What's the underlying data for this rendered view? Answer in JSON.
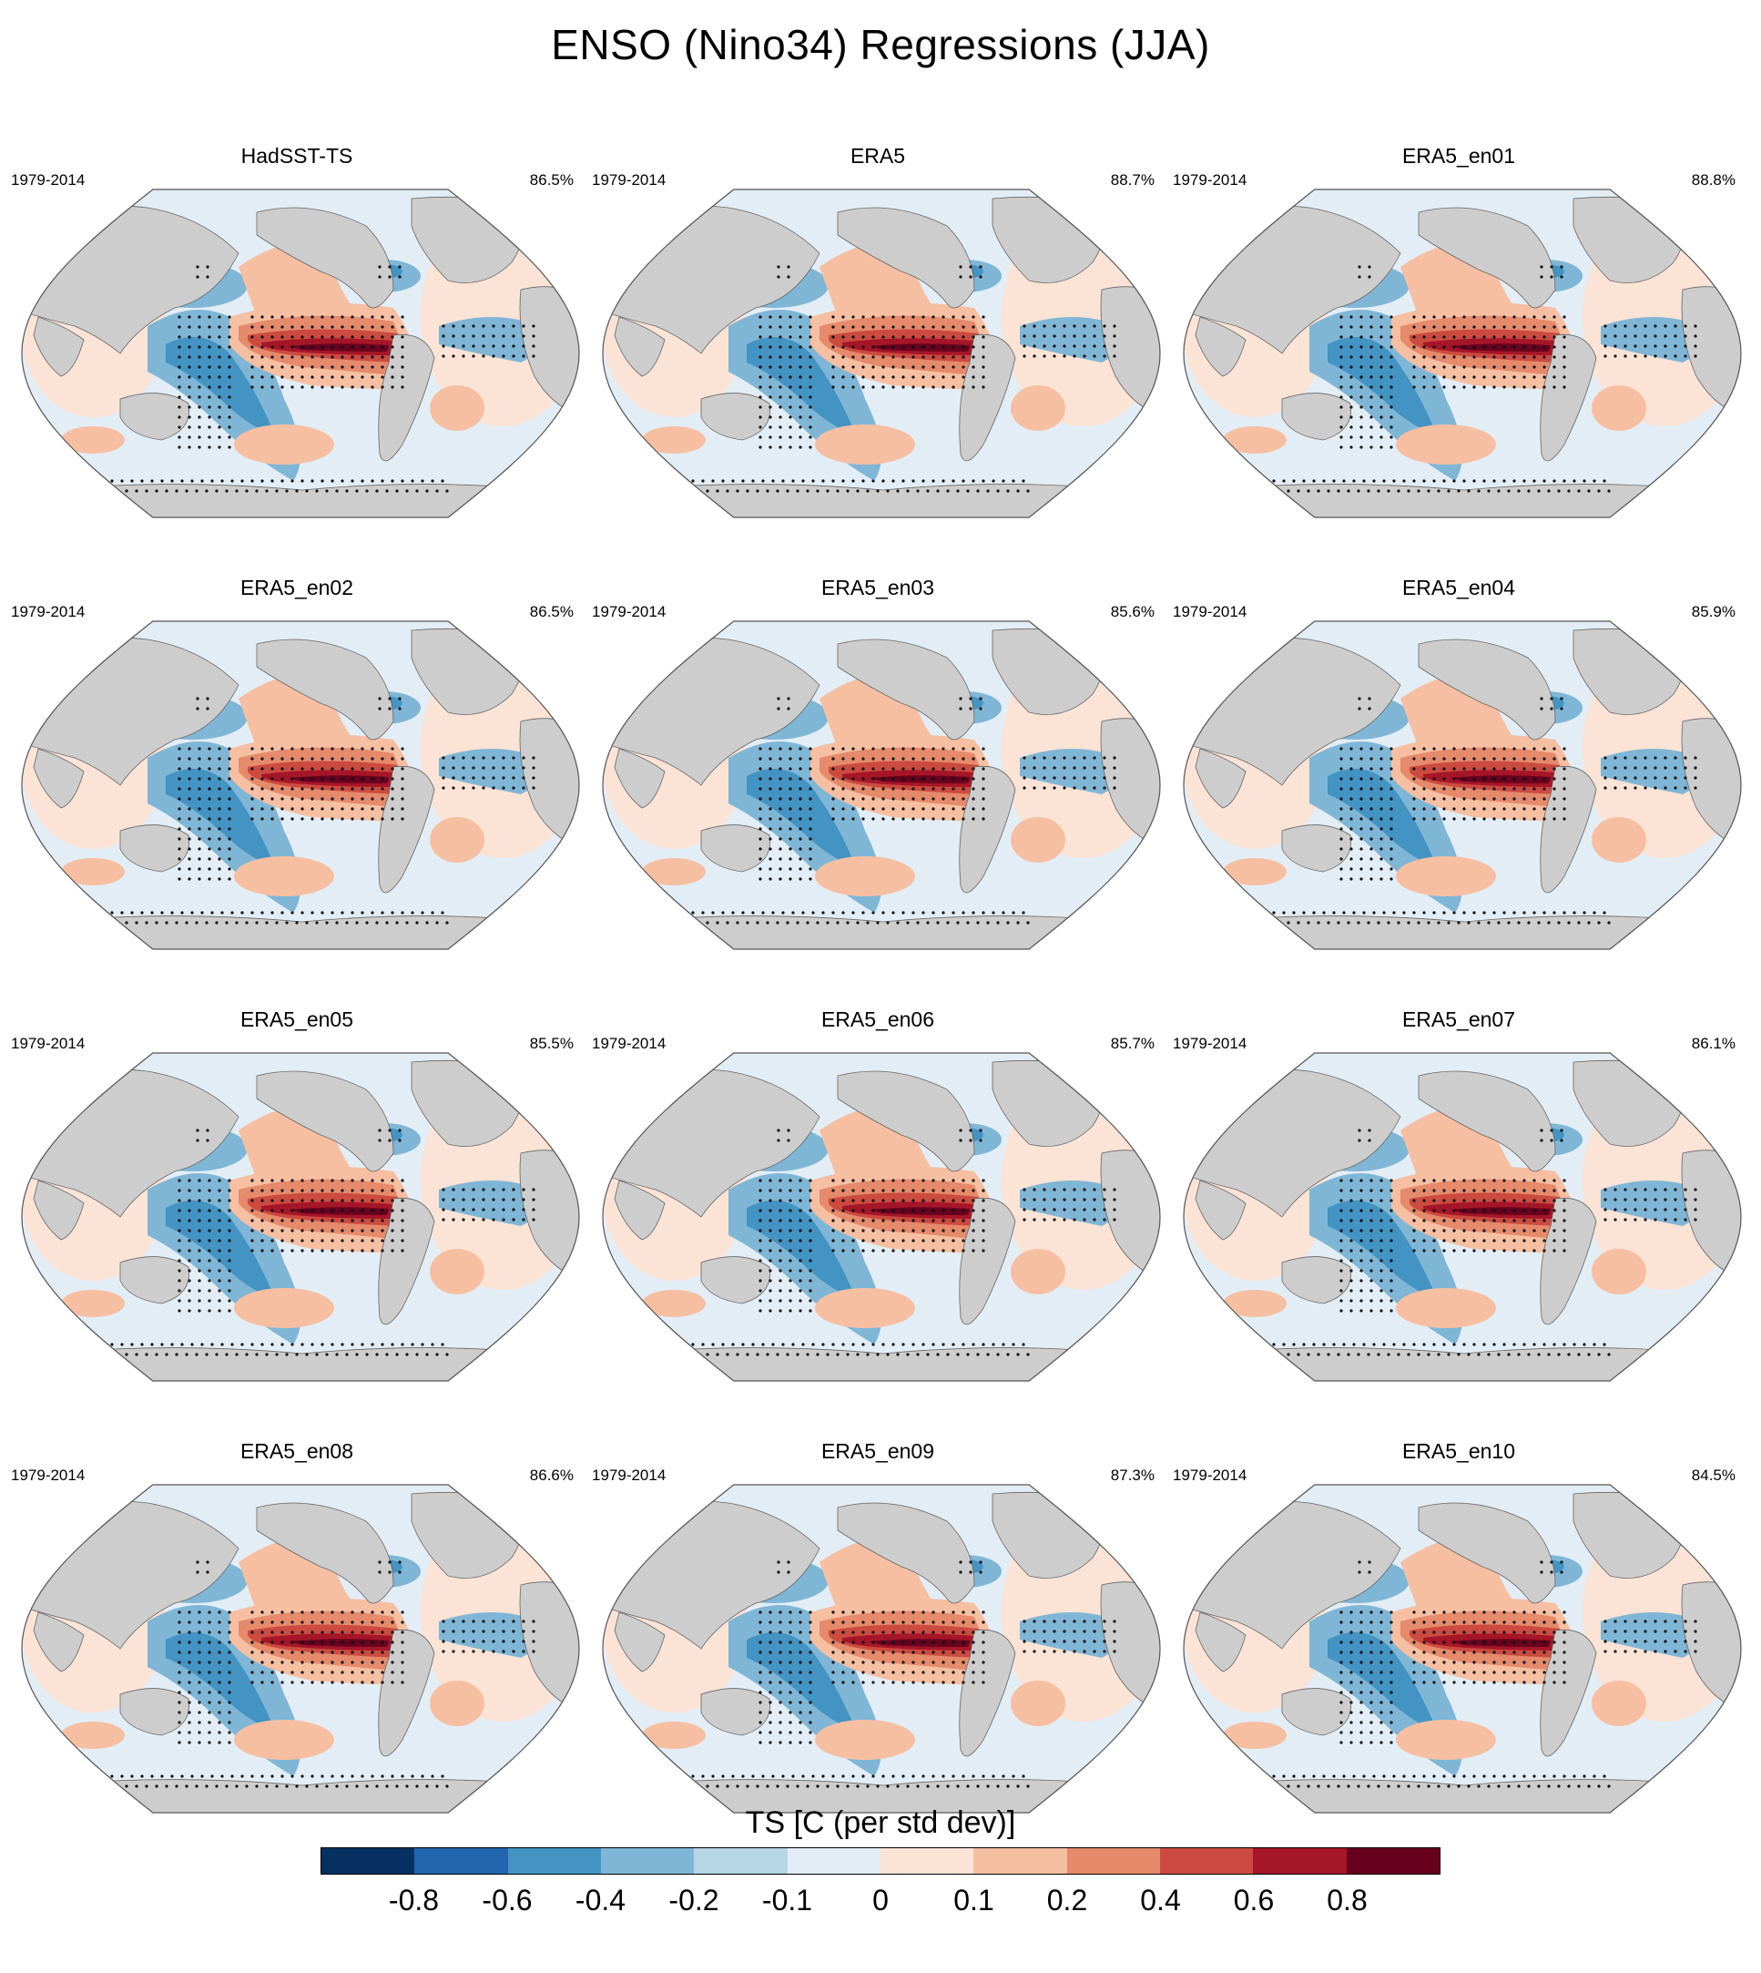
{
  "title": "ENSO (Nino34) Regressions (JJA)",
  "chart_data": {
    "type": "heatmap",
    "projection": "Robinson (Pacific-centered)",
    "variable": "TS",
    "period": "1979-2014",
    "panels": [
      {
        "name": "HadSST-TS",
        "period": "1979-2014",
        "pct": "86.5%"
      },
      {
        "name": "ERA5",
        "period": "1979-2014",
        "pct": "88.7%"
      },
      {
        "name": "ERA5_en01",
        "period": "1979-2014",
        "pct": "88.8%"
      },
      {
        "name": "ERA5_en02",
        "period": "1979-2014",
        "pct": "86.5%"
      },
      {
        "name": "ERA5_en03",
        "period": "1979-2014",
        "pct": "85.6%"
      },
      {
        "name": "ERA5_en04",
        "period": "1979-2014",
        "pct": "85.9%"
      },
      {
        "name": "ERA5_en05",
        "period": "1979-2014",
        "pct": "85.5%"
      },
      {
        "name": "ERA5_en06",
        "period": "1979-2014",
        "pct": "85.7%"
      },
      {
        "name": "ERA5_en07",
        "period": "1979-2014",
        "pct": "86.1%"
      },
      {
        "name": "ERA5_en08",
        "period": "1979-2014",
        "pct": "86.6%"
      },
      {
        "name": "ERA5_en09",
        "period": "1979-2014",
        "pct": "87.3%"
      },
      {
        "name": "ERA5_en10",
        "period": "1979-2014",
        "pct": "84.5%"
      }
    ],
    "colorbar": {
      "title": "TS [C (per std dev)]",
      "tick_labels": [
        "-0.8",
        "-0.6",
        "-0.4",
        "-0.2",
        "-0.1",
        "0",
        "0.1",
        "0.2",
        "0.4",
        "0.6",
        "0.8"
      ],
      "colors": [
        "#053061",
        "#2166ac",
        "#4393c3",
        "#7fb6d6",
        "#b6d5e6",
        "#e3edf5",
        "#fbe3d6",
        "#f6bfa2",
        "#e58a6b",
        "#cc4b40",
        "#a51628",
        "#67001f"
      ]
    }
  }
}
